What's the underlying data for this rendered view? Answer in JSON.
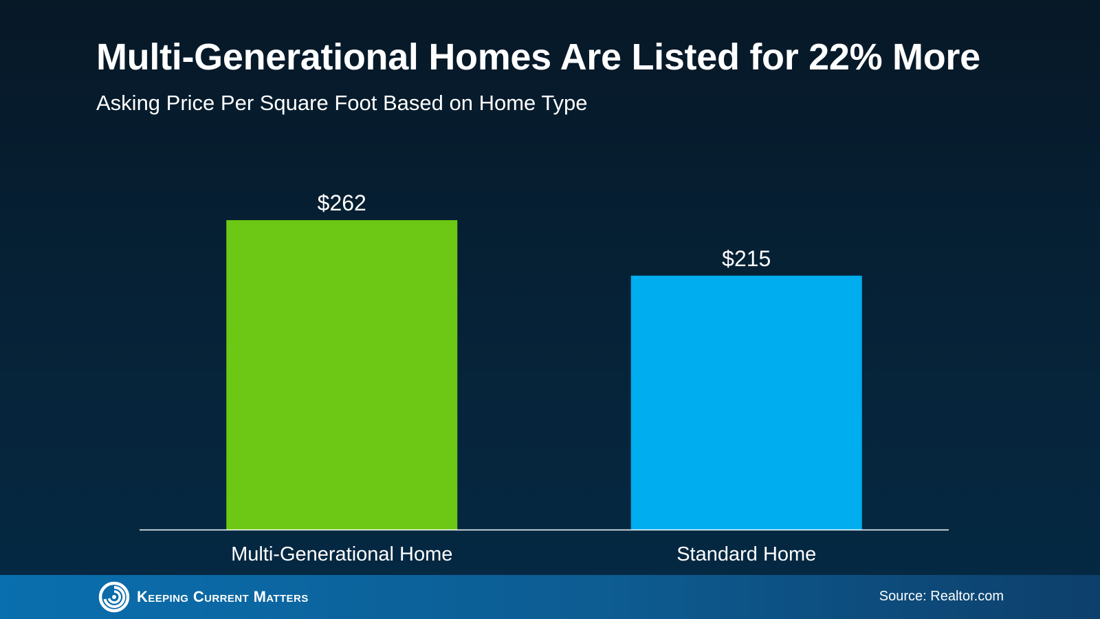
{
  "chart_data": {
    "type": "bar",
    "title": "Multi-Generational Homes Are Listed for 22% More",
    "subtitle": "Asking Price Per Square Foot Based on Home Type",
    "categories": [
      "Multi-Generational Home",
      "Standard Home"
    ],
    "values": [
      262,
      215
    ],
    "value_labels": [
      "$262",
      "$215"
    ],
    "colors": [
      "#6cc814",
      "#00adee"
    ],
    "xlabel": "",
    "ylabel": "",
    "ylim": [
      0,
      290
    ],
    "grid": false,
    "legend": "none"
  },
  "footer": {
    "brand": "Keeping Current Matters",
    "source": "Source: Realtor.com"
  }
}
